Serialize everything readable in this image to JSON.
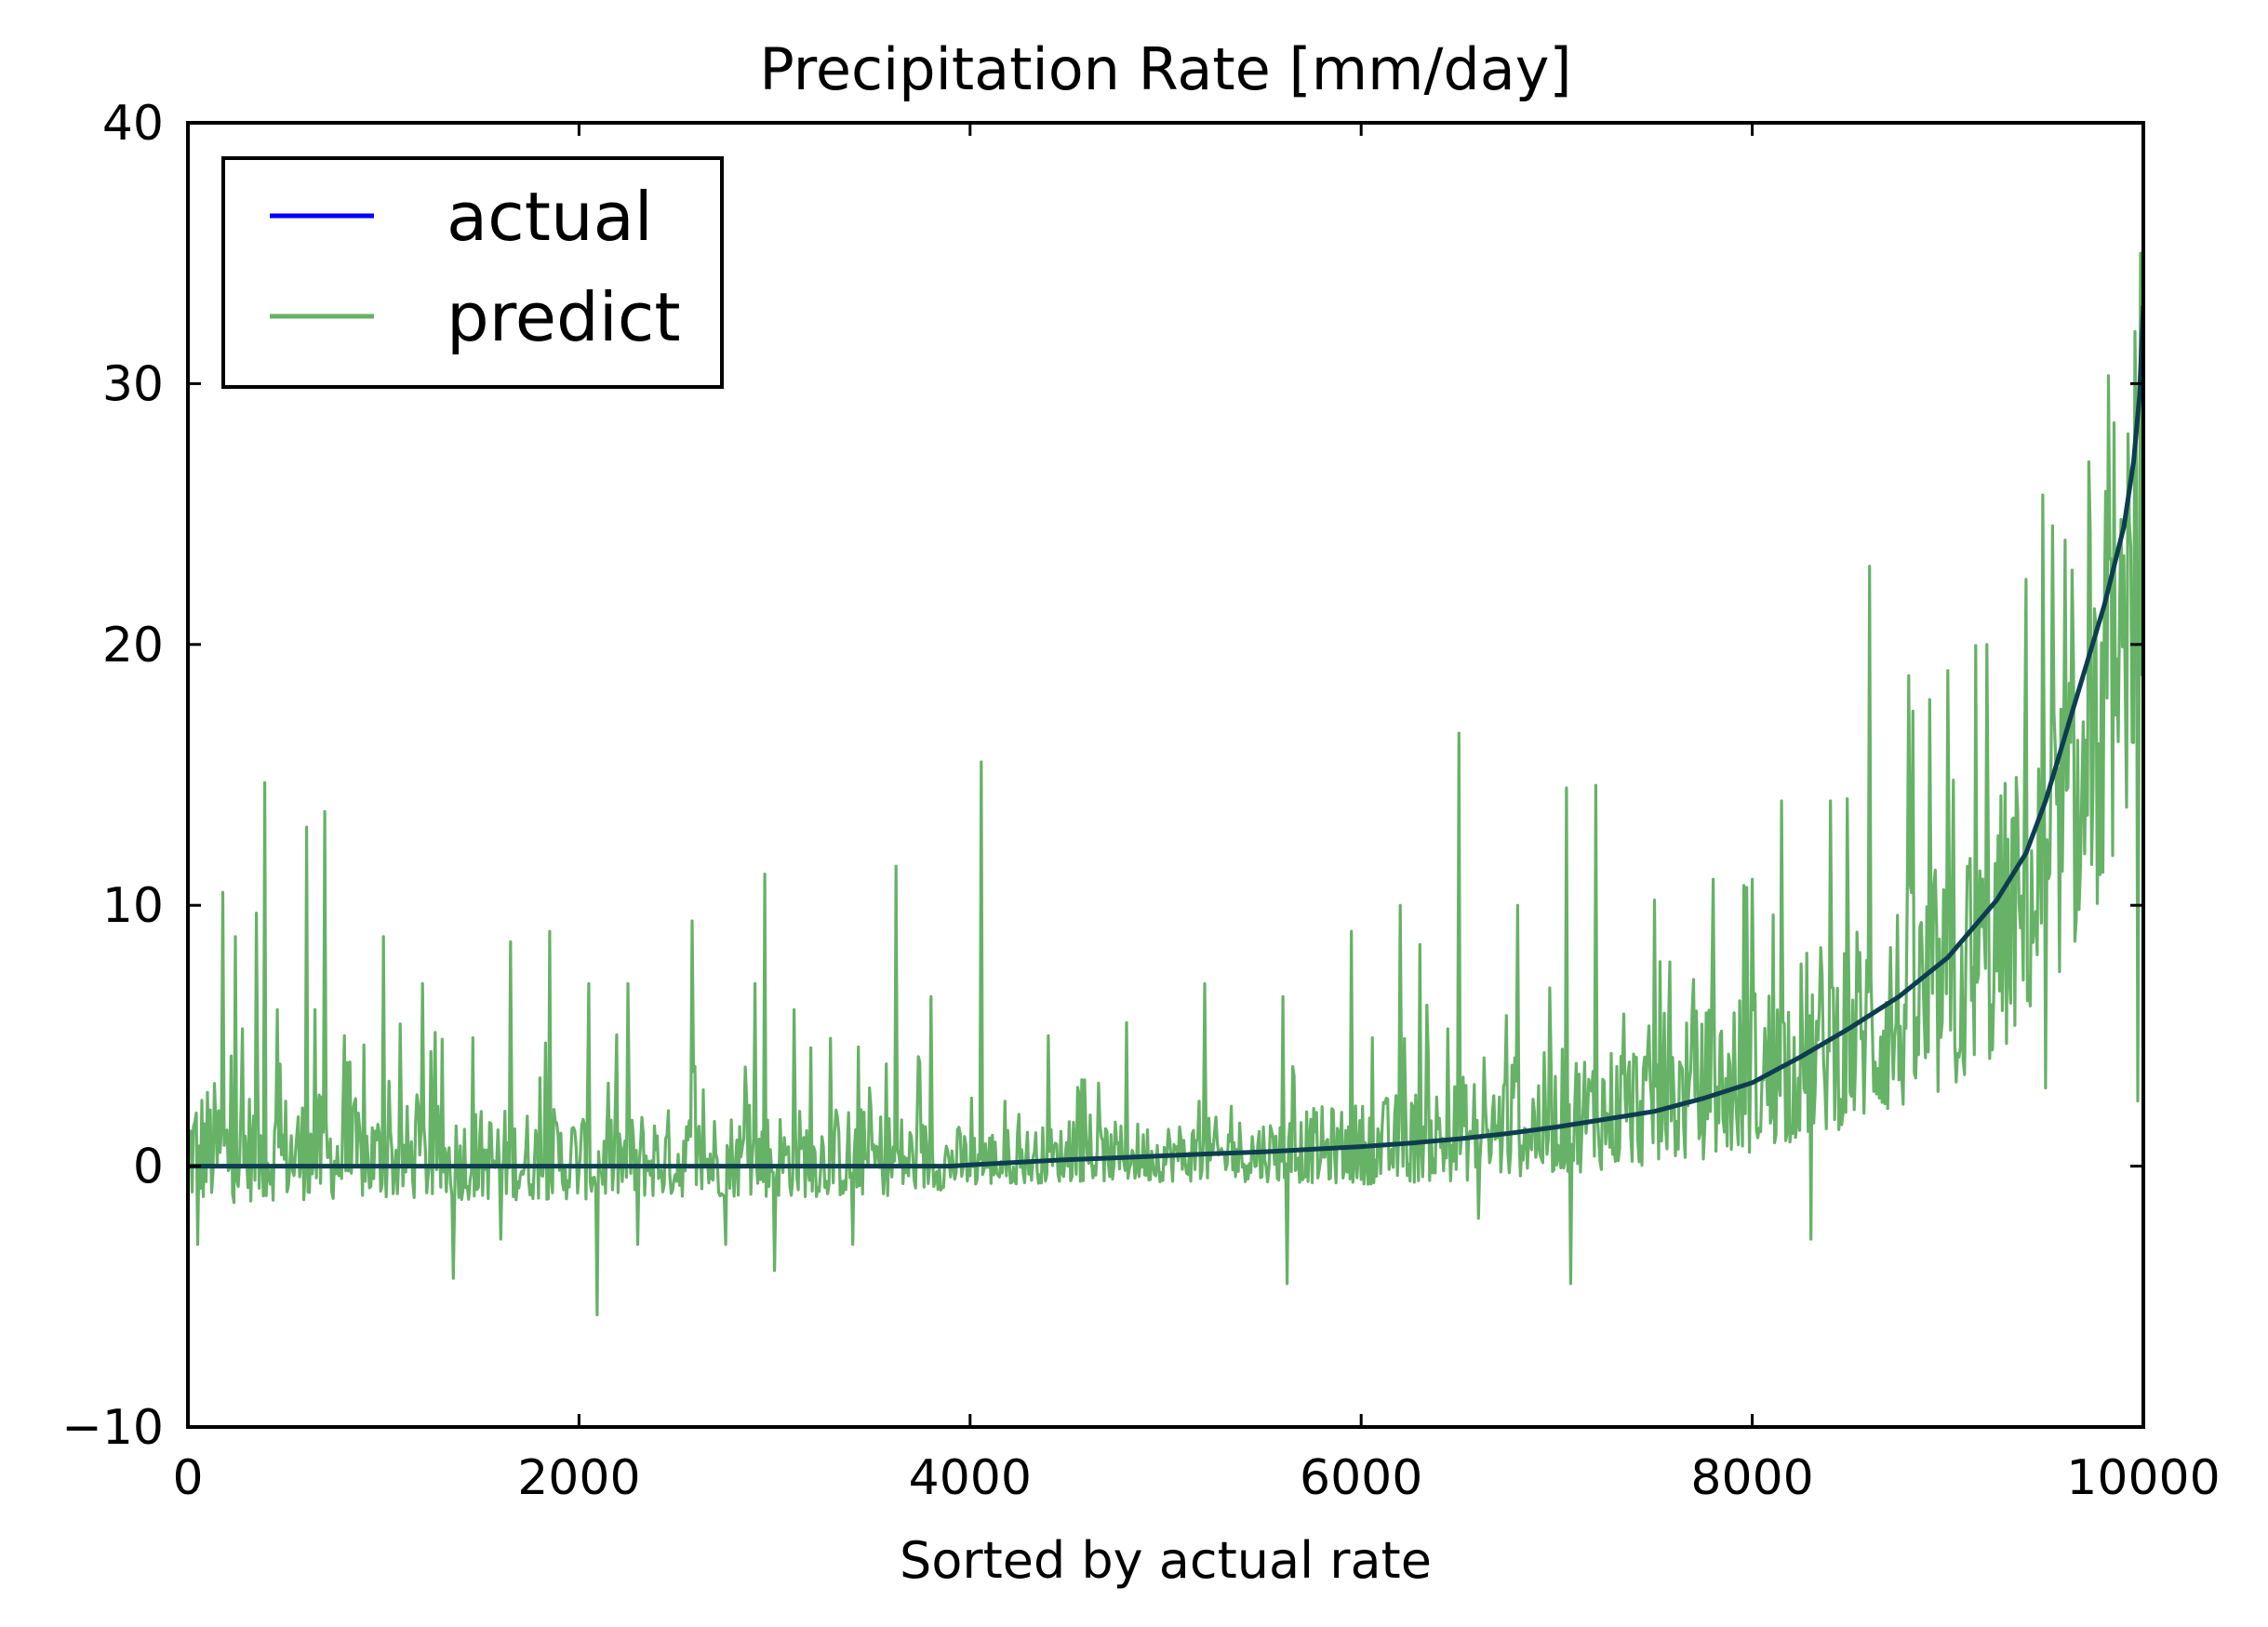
{
  "chart_data": {
    "type": "line",
    "title": "Precipitation Rate [mm/day]",
    "xlabel": "Sorted by actual rate",
    "ylabel": "",
    "xlim": [
      0,
      10000
    ],
    "ylim": [
      -10,
      40
    ],
    "x_ticks": [
      0,
      2000,
      4000,
      6000,
      8000,
      10000
    ],
    "y_ticks": [
      -10,
      0,
      10,
      20,
      30,
      40
    ],
    "x_tick_labels": [
      "0",
      "2000",
      "4000",
      "6000",
      "8000",
      "10000"
    ],
    "y_tick_labels": [
      "−10",
      "0",
      "10",
      "20",
      "30",
      "40"
    ],
    "grid": false,
    "legend_position": "upper-left",
    "series": [
      {
        "name": "actual",
        "color": "#0000ff",
        "x": [
          0,
          500,
          1000,
          1500,
          2000,
          2500,
          3000,
          3500,
          3900,
          4000,
          4250,
          4500,
          4750,
          5000,
          5250,
          5500,
          5750,
          6000,
          6250,
          6500,
          6750,
          7000,
          7250,
          7500,
          7750,
          8000,
          8250,
          8500,
          8750,
          9000,
          9250,
          9400,
          9500,
          9600,
          9700,
          9800,
          9900,
          9950,
          9980,
          10000
        ],
        "y": [
          0,
          0,
          0,
          0,
          0,
          0,
          0,
          0,
          0,
          0.05,
          0.15,
          0.25,
          0.32,
          0.4,
          0.48,
          0.55,
          0.65,
          0.75,
          0.88,
          1.05,
          1.25,
          1.5,
          1.8,
          2.1,
          2.6,
          3.2,
          4.2,
          5.3,
          6.5,
          8.0,
          10.2,
          12.0,
          14.0,
          16.5,
          19.0,
          21.5,
          24.5,
          27.0,
          29.5,
          33.0
        ]
      },
      {
        "name": "predict",
        "color": "#66b266",
        "x": [],
        "y": [],
        "band": {
          "x": [
            0,
            500,
            1000,
            1500,
            2000,
            2500,
            3000,
            3500,
            4000,
            4500,
            5000,
            5500,
            6000,
            6500,
            7000,
            7500,
            8000,
            8500,
            9000,
            9250,
            9500,
            9750,
            9900,
            10000
          ],
          "lower": [
            -1.5,
            -1.3,
            -1.3,
            -1.3,
            -1.3,
            -1.2,
            -1.2,
            -1.2,
            -0.8,
            -0.6,
            -0.6,
            -0.6,
            -0.7,
            -0.6,
            -0.3,
            0.0,
            0.5,
            1.5,
            2.5,
            4.0,
            6.5,
            9.5,
            13.0,
            18.0
          ],
          "upper": [
            3.5,
            3.0,
            2.5,
            2.3,
            2.3,
            2.3,
            2.3,
            2.4,
            1.5,
            1.6,
            1.8,
            2.0,
            2.5,
            3.5,
            4.5,
            5.5,
            7.0,
            9.5,
            12.0,
            14.5,
            17.5,
            22.0,
            26.0,
            30.0
          ]
        },
        "spikes": [
          [
            180,
            10.5
          ],
          [
            240,
            8.8
          ],
          [
            350,
            9.7
          ],
          [
            390,
            14.7
          ],
          [
            460,
            6.0
          ],
          [
            610,
            13.0
          ],
          [
            650,
            6.0
          ],
          [
            700,
            13.6
          ],
          [
            800,
            5.0
          ],
          [
            1000,
            8.8
          ],
          [
            1200,
            7.0
          ],
          [
            1650,
            8.6
          ],
          [
            1850,
            9.0
          ],
          [
            2050,
            7.0
          ],
          [
            2250,
            7.0
          ],
          [
            2580,
            9.4
          ],
          [
            2900,
            7.0
          ],
          [
            2950,
            11.2
          ],
          [
            3100,
            6.0
          ],
          [
            3620,
            11.5
          ],
          [
            3800,
            6.5
          ],
          [
            4060,
            15.5
          ],
          [
            4400,
            5.0
          ],
          [
            4800,
            5.5
          ],
          [
            5200,
            7.0
          ],
          [
            5600,
            6.5
          ],
          [
            5950,
            9.0
          ],
          [
            6200,
            10.0
          ],
          [
            6300,
            8.5
          ],
          [
            6500,
            16.6
          ],
          [
            6800,
            10.0
          ],
          [
            7050,
            14.5
          ],
          [
            7200,
            14.6
          ],
          [
            7500,
            10.2
          ],
          [
            7800,
            11.0
          ],
          [
            8000,
            11.0
          ],
          [
            8150,
            14.0
          ],
          [
            8400,
            14.0
          ],
          [
            8600,
            23.0
          ],
          [
            8800,
            18.8
          ],
          [
            9000,
            19.0
          ],
          [
            9200,
            20.0
          ],
          [
            9400,
            22.5
          ],
          [
            9600,
            24.0
          ],
          [
            9720,
            27.0
          ],
          [
            9850,
            28.5
          ],
          [
            9960,
            32.0
          ],
          [
            9985,
            35.0
          ],
          [
            10000,
            37.0
          ]
        ],
        "dips": [
          [
            50,
            -3.0
          ],
          [
            350,
            -3.5
          ],
          [
            800,
            -3.0
          ],
          [
            1000,
            -3.8
          ],
          [
            1360,
            -4.3
          ],
          [
            1600,
            -2.8
          ],
          [
            2090,
            -5.7
          ],
          [
            2300,
            -3.0
          ],
          [
            2750,
            -3.0
          ],
          [
            3000,
            -4.0
          ],
          [
            3400,
            -3.0
          ],
          [
            5620,
            -4.5
          ],
          [
            6600,
            -2.0
          ],
          [
            7070,
            -4.5
          ],
          [
            7800,
            -2.0
          ],
          [
            8300,
            -2.8
          ],
          [
            9000,
            1.0
          ],
          [
            9500,
            3.0
          ],
          [
            9970,
            2.5
          ]
        ]
      }
    ]
  }
}
